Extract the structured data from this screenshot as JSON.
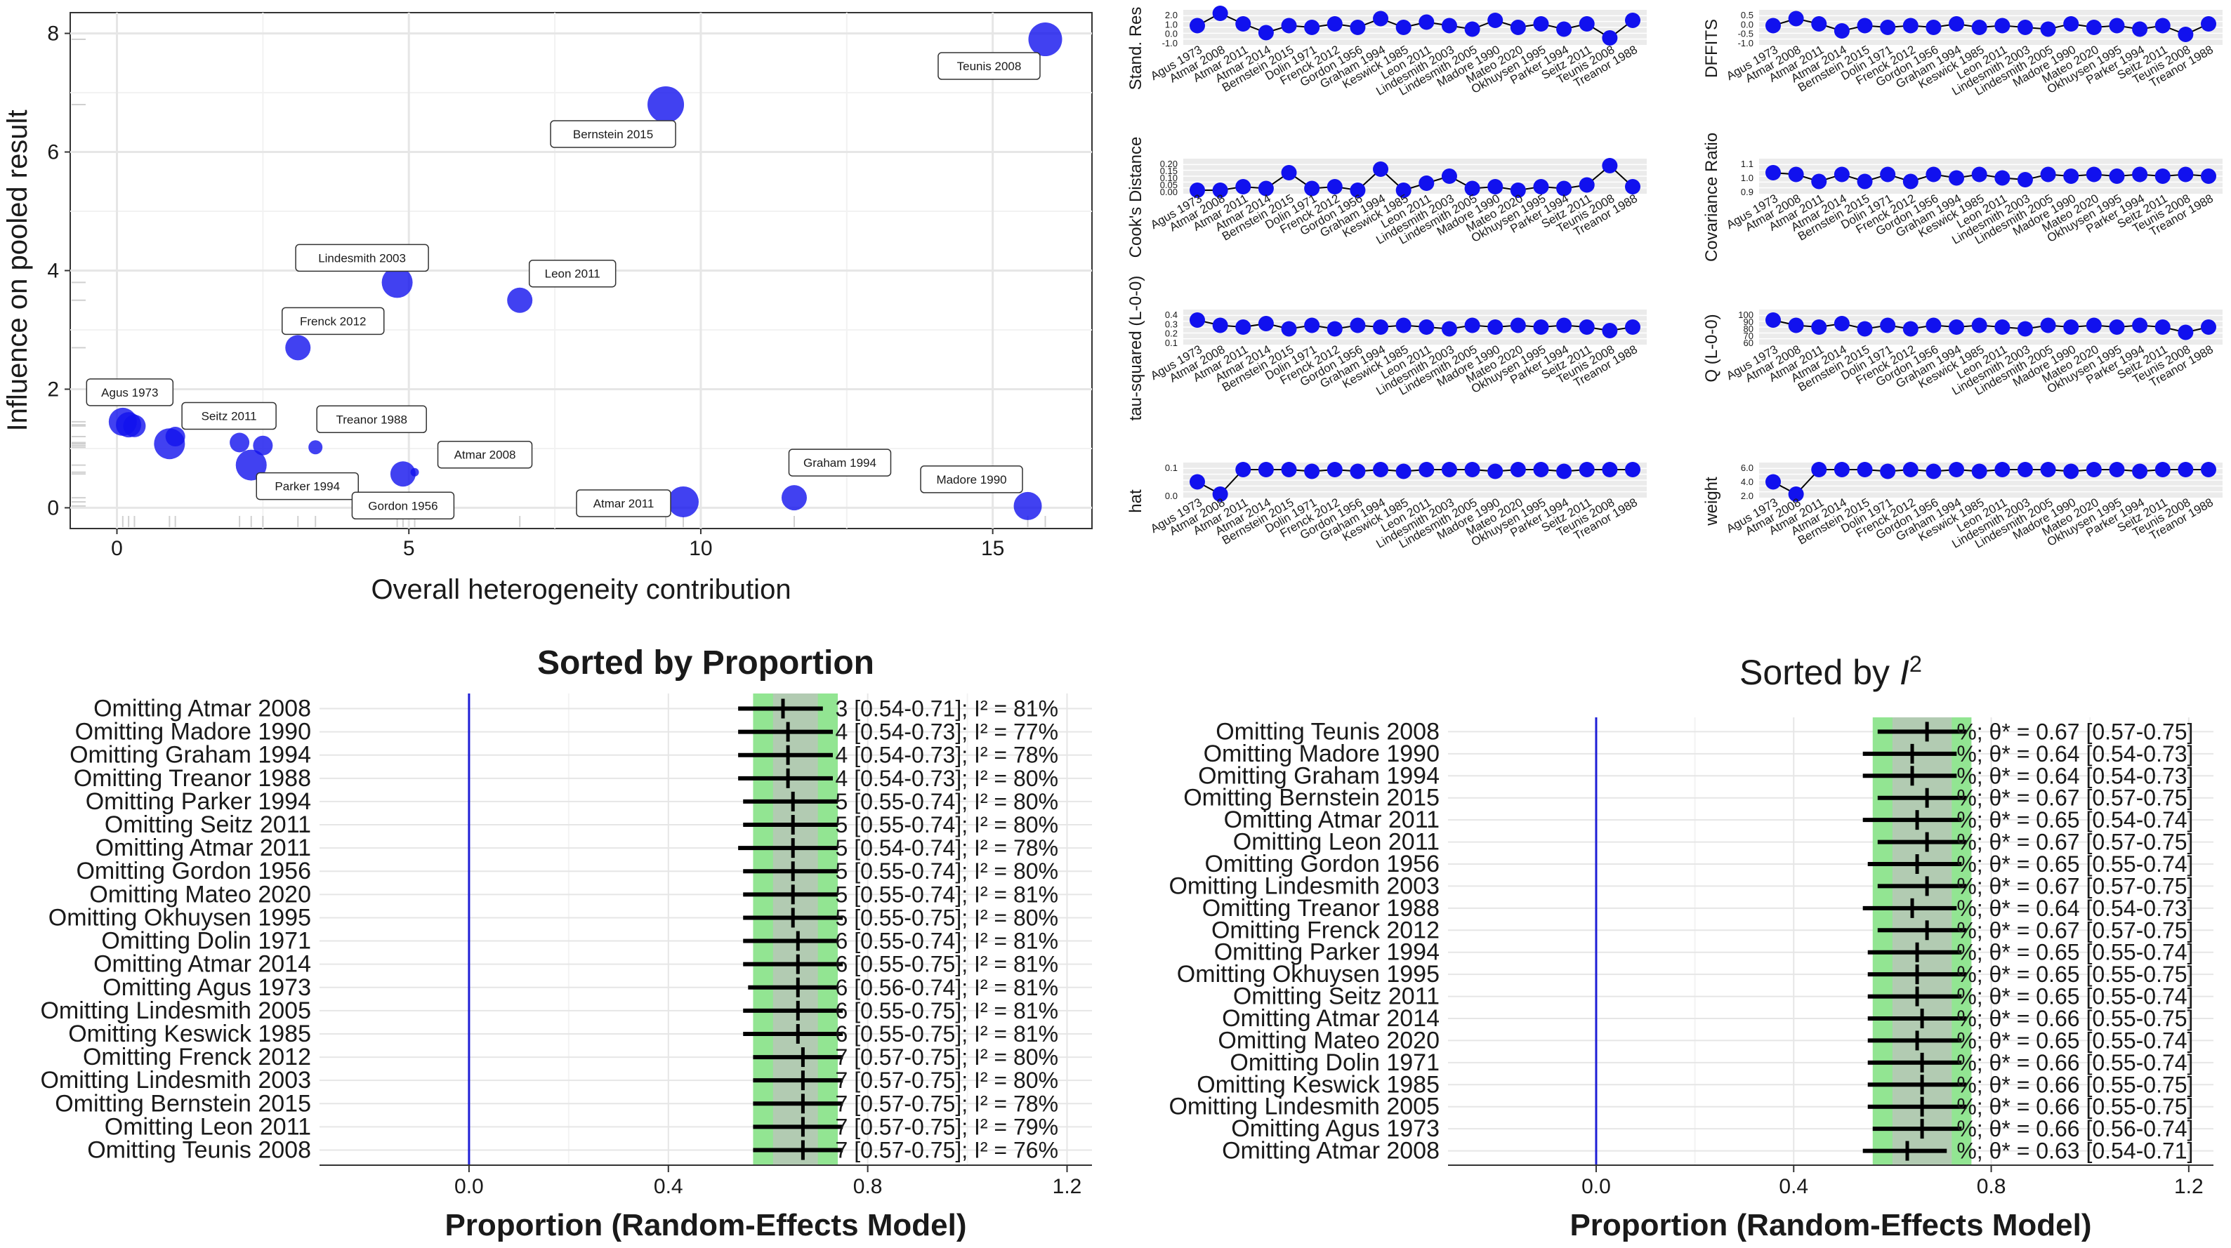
{
  "colors": {
    "point": "#1111ee",
    "grid": "#e6e6e6",
    "panel": "#ebebeb",
    "band": "#92e592",
    "blueline": "#1f1fd6",
    "black": "#000000"
  },
  "chart_data": [
    {
      "type": "scatter",
      "xlabel": "Overall heterogeneity contribution",
      "ylabel": "Influence on pooled result",
      "xlim": [
        -0.8,
        16.7
      ],
      "ylim": [
        -0.35,
        8.35
      ],
      "xticks": [
        0,
        5,
        10,
        15
      ],
      "yticks": [
        0,
        2,
        4,
        6,
        8
      ],
      "points": [
        {
          "label": "Agus 1973",
          "x": 0.1,
          "y": 1.45,
          "size": 20
        },
        {
          "x": 0.2,
          "y": 1.4,
          "size": 18
        },
        {
          "x": 0.3,
          "y": 1.38,
          "size": 16
        },
        {
          "x": 0.9,
          "y": 1.08,
          "size": 22
        },
        {
          "x": 1.0,
          "y": 1.2,
          "size": 14
        },
        {
          "label": "Seitz 2011",
          "x": 2.1,
          "y": 1.1,
          "size": 14
        },
        {
          "x": 2.5,
          "y": 1.05,
          "size": 14
        },
        {
          "label": "Parker 1994",
          "x": 2.3,
          "y": 0.72,
          "size": 22
        },
        {
          "label": "Treanor 1988",
          "x": 3.4,
          "y": 1.02,
          "size": 10
        },
        {
          "label": "Frenck 2012",
          "x": 3.1,
          "y": 2.7,
          "size": 18
        },
        {
          "label": "Lindesmith 2003",
          "x": 4.8,
          "y": 3.8,
          "size": 22
        },
        {
          "label": "Gordon 1956",
          "x": 4.9,
          "y": 0.57,
          "size": 18
        },
        {
          "label": "Atmar 2008",
          "x": 5.1,
          "y": 0.6,
          "size": 6
        },
        {
          "label": "Leon 2011",
          "x": 6.9,
          "y": 3.5,
          "size": 18
        },
        {
          "label": "Bernstein 2015",
          "x": 9.4,
          "y": 6.8,
          "size": 26
        },
        {
          "label": "Atmar 2011",
          "x": 9.7,
          "y": 0.1,
          "size": 22
        },
        {
          "label": "Graham 1994",
          "x": 11.6,
          "y": 0.17,
          "size": 18
        },
        {
          "label": "Madore 1990",
          "x": 15.6,
          "y": 0.03,
          "size": 20
        },
        {
          "label": "Teunis 2008",
          "x": 15.9,
          "y": 7.9,
          "size": 24
        }
      ]
    },
    {
      "type": "line",
      "studies": [
        "Agus 1973",
        "Atmar 2008",
        "Atmar 2011",
        "Atmar 2014",
        "Bernstein 2015",
        "Dolin 1971",
        "Frenck 2012",
        "Gordon 1956",
        "Graham 1994",
        "Keswick 1985",
        "Leon 2011",
        "Lindesmith 2003",
        "Lindesmith 2005",
        "Madore 1990",
        "Mateo 2020",
        "Okhuysen 1995",
        "Parker 1994",
        "Seitz 2011",
        "Teunis 2008",
        "Treanor 1988"
      ],
      "panels": [
        {
          "ylabel": "Stand. Res",
          "ticks": [
            "2.0",
            "1.0",
            "0.0",
            "-1.0"
          ],
          "values": [
            0.55,
            0.9,
            0.6,
            0.35,
            0.55,
            0.5,
            0.6,
            0.5,
            0.75,
            0.5,
            0.65,
            0.55,
            0.45,
            0.7,
            0.5,
            0.6,
            0.45,
            0.6,
            0.2,
            0.7
          ]
        },
        {
          "ylabel": "DFFITS",
          "ticks": [
            "0.5",
            "0.0",
            "-0.5",
            "-1.0"
          ],
          "values": [
            0.55,
            0.75,
            0.6,
            0.4,
            0.55,
            0.5,
            0.55,
            0.5,
            0.6,
            0.5,
            0.55,
            0.5,
            0.45,
            0.6,
            0.5,
            0.55,
            0.45,
            0.55,
            0.3,
            0.6
          ]
        },
        {
          "ylabel": "Cook's Distance",
          "ticks": [
            "0.20",
            "0.15",
            "0.10",
            "0.05",
            "0.00"
          ],
          "values": [
            0.1,
            0.1,
            0.2,
            0.15,
            0.6,
            0.15,
            0.2,
            0.1,
            0.7,
            0.1,
            0.3,
            0.5,
            0.15,
            0.2,
            0.1,
            0.2,
            0.15,
            0.25,
            0.8,
            0.2
          ]
        },
        {
          "ylabel": "Covariance Ratio",
          "ticks": [
            "1.1",
            "1.0",
            "0.9"
          ],
          "values": [
            0.6,
            0.55,
            0.35,
            0.55,
            0.35,
            0.55,
            0.35,
            0.55,
            0.45,
            0.55,
            0.45,
            0.4,
            0.55,
            0.5,
            0.55,
            0.5,
            0.55,
            0.5,
            0.55,
            0.5
          ]
        },
        {
          "ylabel": "tau-squared (L-0-0)",
          "ticks": [
            "0.4",
            "0.3",
            "0.2",
            "0.1"
          ],
          "values": [
            0.7,
            0.55,
            0.5,
            0.6,
            0.45,
            0.55,
            0.45,
            0.55,
            0.5,
            0.55,
            0.5,
            0.45,
            0.55,
            0.5,
            0.55,
            0.5,
            0.55,
            0.5,
            0.4,
            0.5
          ]
        },
        {
          "ylabel": "Q (L-0-0)",
          "ticks": [
            "100",
            "90",
            "80",
            "70",
            "60"
          ],
          "values": [
            0.7,
            0.55,
            0.5,
            0.6,
            0.45,
            0.55,
            0.45,
            0.55,
            0.5,
            0.55,
            0.5,
            0.45,
            0.55,
            0.5,
            0.55,
            0.5,
            0.55,
            0.5,
            0.35,
            0.5
          ]
        },
        {
          "ylabel": "hat",
          "ticks": [
            "0.1",
            "0.0"
          ],
          "values": [
            0.45,
            0.1,
            0.8,
            0.8,
            0.8,
            0.75,
            0.8,
            0.75,
            0.8,
            0.75,
            0.8,
            0.8,
            0.8,
            0.75,
            0.8,
            0.8,
            0.75,
            0.8,
            0.8,
            0.8
          ]
        },
        {
          "ylabel": "weight",
          "ticks": [
            "6.0",
            "4.0",
            "2.0"
          ],
          "values": [
            0.45,
            0.1,
            0.8,
            0.8,
            0.8,
            0.75,
            0.8,
            0.75,
            0.8,
            0.75,
            0.8,
            0.8,
            0.8,
            0.75,
            0.8,
            0.8,
            0.75,
            0.8,
            0.8,
            0.8
          ]
        }
      ]
    },
    {
      "type": "forest",
      "title": "Sorted by Proportion",
      "xlabel": "Proportion (Random-Effects Model)",
      "xlim": [
        -0.3,
        1.25
      ],
      "xticks": [
        "0.0",
        "0.4",
        "0.8",
        "1.2"
      ],
      "band": [
        0.57,
        0.74
      ],
      "refline": 0.0,
      "rows": [
        {
          "label": "Omitting Atmar 2008",
          "est": 0.63,
          "lo": 0.54,
          "hi": 0.71,
          "annot": "3 [0.54-0.71]; I² = 81%"
        },
        {
          "label": "Omitting Madore 1990",
          "est": 0.64,
          "lo": 0.54,
          "hi": 0.73,
          "annot": "4 [0.54-0.73]; I² = 77%"
        },
        {
          "label": "Omitting Graham 1994",
          "est": 0.64,
          "lo": 0.54,
          "hi": 0.73,
          "annot": "4 [0.54-0.73]; I² = 78%"
        },
        {
          "label": "Omitting Treanor 1988",
          "est": 0.64,
          "lo": 0.54,
          "hi": 0.73,
          "annot": "4 [0.54-0.73]; I² = 80%"
        },
        {
          "label": "Omitting Parker 1994",
          "est": 0.65,
          "lo": 0.55,
          "hi": 0.74,
          "annot": "5 [0.55-0.74]; I² = 80%"
        },
        {
          "label": "Omitting Seitz 2011",
          "est": 0.65,
          "lo": 0.55,
          "hi": 0.74,
          "annot": "5 [0.55-0.74]; I² = 80%"
        },
        {
          "label": "Omitting Atmar 2011",
          "est": 0.65,
          "lo": 0.54,
          "hi": 0.74,
          "annot": "5 [0.54-0.74]; I² = 78%"
        },
        {
          "label": "Omitting Gordon 1956",
          "est": 0.65,
          "lo": 0.55,
          "hi": 0.74,
          "annot": "5 [0.55-0.74]; I² = 80%"
        },
        {
          "label": "Omitting Mateo 2020",
          "est": 0.65,
          "lo": 0.55,
          "hi": 0.74,
          "annot": "5 [0.55-0.74]; I² = 81%"
        },
        {
          "label": "Omitting Okhuysen 1995",
          "est": 0.65,
          "lo": 0.55,
          "hi": 0.75,
          "annot": "5 [0.55-0.75]; I² = 80%"
        },
        {
          "label": "Omitting Dolin 1971",
          "est": 0.66,
          "lo": 0.55,
          "hi": 0.74,
          "annot": "6 [0.55-0.74]; I² = 81%"
        },
        {
          "label": "Omitting Atmar 2014",
          "est": 0.66,
          "lo": 0.55,
          "hi": 0.75,
          "annot": "6 [0.55-0.75]; I² = 81%"
        },
        {
          "label": "Omitting Agus 1973",
          "est": 0.66,
          "lo": 0.56,
          "hi": 0.74,
          "annot": "6 [0.56-0.74]; I² = 81%"
        },
        {
          "label": "Omitting Lindesmith 2005",
          "est": 0.66,
          "lo": 0.55,
          "hi": 0.75,
          "annot": "6 [0.55-0.75]; I² = 81%"
        },
        {
          "label": "Omitting Keswick 1985",
          "est": 0.66,
          "lo": 0.55,
          "hi": 0.75,
          "annot": "6 [0.55-0.75]; I² = 81%"
        },
        {
          "label": "Omitting Frenck 2012",
          "est": 0.67,
          "lo": 0.57,
          "hi": 0.75,
          "annot": "7 [0.57-0.75]; I² = 80%"
        },
        {
          "label": "Omitting Lindesmith 2003",
          "est": 0.67,
          "lo": 0.57,
          "hi": 0.75,
          "annot": "7 [0.57-0.75]; I² = 80%"
        },
        {
          "label": "Omitting Bernstein 2015",
          "est": 0.67,
          "lo": 0.57,
          "hi": 0.75,
          "annot": "7 [0.57-0.75]; I² = 78%"
        },
        {
          "label": "Omitting Leon 2011",
          "est": 0.67,
          "lo": 0.57,
          "hi": 0.75,
          "annot": "7 [0.57-0.75]; I² = 79%"
        },
        {
          "label": "Omitting Teunis 2008",
          "est": 0.67,
          "lo": 0.57,
          "hi": 0.75,
          "annot": "7 [0.57-0.75]; I² = 76%"
        }
      ]
    },
    {
      "type": "forest",
      "title": "Sorted by I²",
      "xlabel": "Proportion (Random-Effects Model)",
      "xlim": [
        -0.3,
        1.25
      ],
      "xticks": [
        "0.0",
        "0.4",
        "0.8",
        "1.2"
      ],
      "band": [
        0.56,
        0.76
      ],
      "refline": 0.0,
      "rows": [
        {
          "label": "Omitting Teunis 2008",
          "est": 0.67,
          "lo": 0.57,
          "hi": 0.75,
          "annot": "%; θ* = 0.67 [0.57-0.75]"
        },
        {
          "label": "Omitting Madore 1990",
          "est": 0.64,
          "lo": 0.54,
          "hi": 0.73,
          "annot": "%; θ* = 0.64 [0.54-0.73]"
        },
        {
          "label": "Omitting Graham 1994",
          "est": 0.64,
          "lo": 0.54,
          "hi": 0.73,
          "annot": "%; θ* = 0.64 [0.54-0.73]"
        },
        {
          "label": "Omitting Bernstein 2015",
          "est": 0.67,
          "lo": 0.57,
          "hi": 0.75,
          "annot": "%; θ* = 0.67 [0.57-0.75]"
        },
        {
          "label": "Omitting Atmar 2011",
          "est": 0.65,
          "lo": 0.54,
          "hi": 0.74,
          "annot": "%; θ* = 0.65 [0.54-0.74]"
        },
        {
          "label": "Omitting Leon 2011",
          "est": 0.67,
          "lo": 0.57,
          "hi": 0.75,
          "annot": "%; θ* = 0.67 [0.57-0.75]"
        },
        {
          "label": "Omitting Gordon 1956",
          "est": 0.65,
          "lo": 0.55,
          "hi": 0.74,
          "annot": "%; θ* = 0.65 [0.55-0.74]"
        },
        {
          "label": "Omitting Lindesmith 2003",
          "est": 0.67,
          "lo": 0.57,
          "hi": 0.75,
          "annot": "%; θ* = 0.67 [0.57-0.75]"
        },
        {
          "label": "Omitting Treanor 1988",
          "est": 0.64,
          "lo": 0.54,
          "hi": 0.73,
          "annot": "%; θ* = 0.64 [0.54-0.73]"
        },
        {
          "label": "Omitting Frenck 2012",
          "est": 0.67,
          "lo": 0.57,
          "hi": 0.75,
          "annot": "%; θ* = 0.67 [0.57-0.75]"
        },
        {
          "label": "Omitting Parker 1994",
          "est": 0.65,
          "lo": 0.55,
          "hi": 0.74,
          "annot": "%; θ* = 0.65 [0.55-0.74]"
        },
        {
          "label": "Omitting Okhuysen 1995",
          "est": 0.65,
          "lo": 0.55,
          "hi": 0.75,
          "annot": "%; θ* = 0.65 [0.55-0.75]"
        },
        {
          "label": "Omitting Seitz 2011",
          "est": 0.65,
          "lo": 0.55,
          "hi": 0.74,
          "annot": "%; θ* = 0.65 [0.55-0.74]"
        },
        {
          "label": "Omitting Atmar 2014",
          "est": 0.66,
          "lo": 0.55,
          "hi": 0.75,
          "annot": "%; θ* = 0.66 [0.55-0.75]"
        },
        {
          "label": "Omitting Mateo 2020",
          "est": 0.65,
          "lo": 0.55,
          "hi": 0.74,
          "annot": "%; θ* = 0.65 [0.55-0.74]"
        },
        {
          "label": "Omitting Dolin 1971",
          "est": 0.66,
          "lo": 0.55,
          "hi": 0.74,
          "annot": "%; θ* = 0.66 [0.55-0.74]"
        },
        {
          "label": "Omitting Keswick 1985",
          "est": 0.66,
          "lo": 0.55,
          "hi": 0.75,
          "annot": "%; θ* = 0.66 [0.55-0.75]"
        },
        {
          "label": "Omitting Lindesmith 2005",
          "est": 0.66,
          "lo": 0.55,
          "hi": 0.75,
          "annot": "%; θ* = 0.66 [0.55-0.75]"
        },
        {
          "label": "Omitting Agus 1973",
          "est": 0.66,
          "lo": 0.56,
          "hi": 0.74,
          "annot": "%; θ* = 0.66 [0.56-0.74]"
        },
        {
          "label": "Omitting Atmar 2008",
          "est": 0.63,
          "lo": 0.54,
          "hi": 0.71,
          "annot": "%; θ* = 0.63 [0.54-0.71]"
        }
      ]
    }
  ]
}
